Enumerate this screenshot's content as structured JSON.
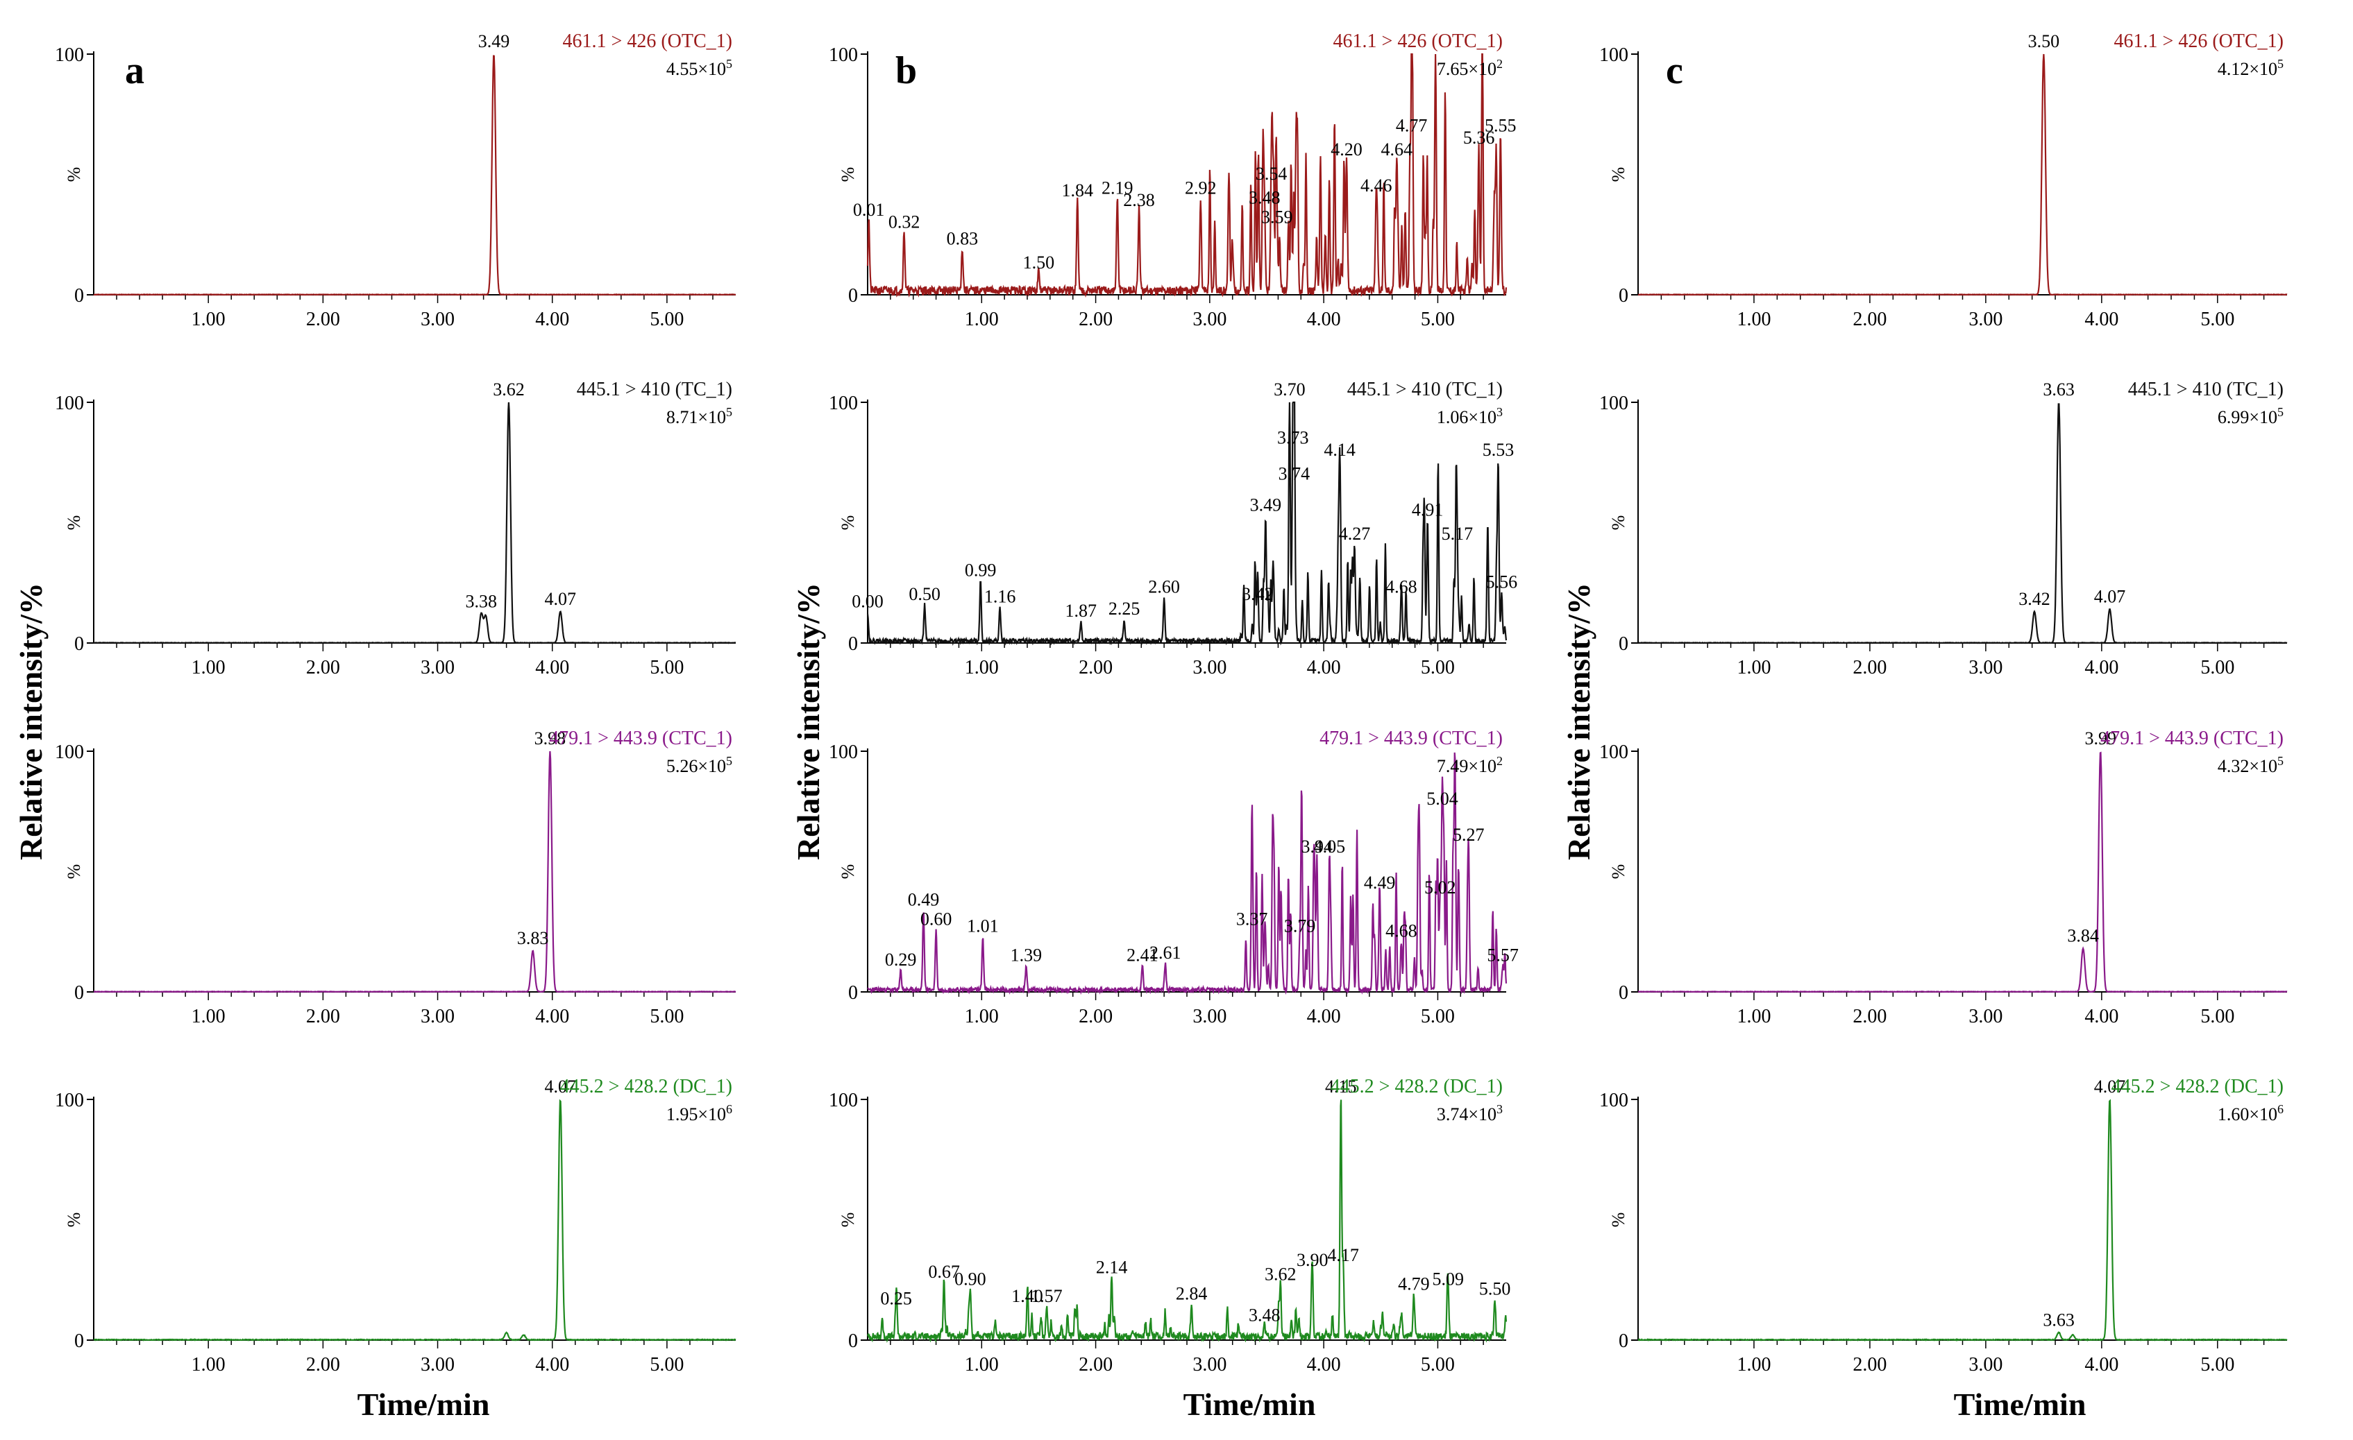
{
  "figure": {
    "y_label": "Relative intensity/%",
    "x_label": "Time/min"
  },
  "chart_data": [
    {
      "panel": "a",
      "row": 0,
      "type": "line",
      "title": "461.1 > 426 (OTC_1)",
      "color": "#9b1b1b",
      "scale": "4.55×10",
      "scale_exp": "5",
      "xticks": [
        "1.00",
        "2.00",
        "3.00",
        "4.00",
        "5.00"
      ],
      "xlim": [
        0,
        5.6
      ],
      "yticks": [
        "0",
        "%",
        "100"
      ],
      "ylim": [
        0,
        100
      ],
      "peaks": [
        {
          "x": 3.49,
          "h": 100,
          "label": "3.49"
        }
      ],
      "noise": 0.3,
      "seed": 11
    },
    {
      "panel": "a",
      "row": 1,
      "type": "line",
      "title": "445.1 > 410 (TC_1)",
      "color": "#111111",
      "scale": "8.71×10",
      "scale_exp": "5",
      "xticks": [
        "1.00",
        "2.00",
        "3.00",
        "4.00",
        "5.00"
      ],
      "xlim": [
        0,
        5.6
      ],
      "yticks": [
        "0",
        "%",
        "100"
      ],
      "ylim": [
        0,
        100
      ],
      "peaks": [
        {
          "x": 3.38,
          "h": 12,
          "label": "3.38"
        },
        {
          "x": 3.42,
          "h": 11
        },
        {
          "x": 3.62,
          "h": 100,
          "label": "3.62"
        },
        {
          "x": 4.07,
          "h": 13,
          "label": "4.07"
        }
      ],
      "noise": 0.3,
      "seed": 12
    },
    {
      "panel": "a",
      "row": 2,
      "type": "line",
      "title": "479.1 > 443.9 (CTC_1)",
      "color": "#8a1a8a",
      "scale": "5.26×10",
      "scale_exp": "5",
      "xticks": [
        "1.00",
        "2.00",
        "3.00",
        "4.00",
        "5.00"
      ],
      "xlim": [
        0,
        5.6
      ],
      "yticks": [
        "0",
        "%",
        "100"
      ],
      "ylim": [
        0,
        100
      ],
      "peaks": [
        {
          "x": 3.83,
          "h": 17,
          "label": "3.83"
        },
        {
          "x": 3.98,
          "h": 100,
          "label": "3.98"
        }
      ],
      "noise": 0.3,
      "seed": 13
    },
    {
      "panel": "a",
      "row": 3,
      "type": "line",
      "title": "445.2 > 428.2 (DC_1)",
      "color": "#1f8a1f",
      "scale": "1.95×10",
      "scale_exp": "6",
      "xticks": [
        "1.00",
        "2.00",
        "3.00",
        "4.00",
        "5.00"
      ],
      "xlim": [
        0,
        5.6
      ],
      "yticks": [
        "0",
        "%",
        "100"
      ],
      "ylim": [
        0,
        100
      ],
      "peaks": [
        {
          "x": 3.6,
          "h": 3
        },
        {
          "x": 3.75,
          "h": 2
        },
        {
          "x": 4.07,
          "h": 100,
          "label": "4.07"
        }
      ],
      "noise": 0.5,
      "seed": 14
    },
    {
      "panel": "b",
      "row": 0,
      "type": "line",
      "title": "461.1 > 426 (OTC_1)",
      "color": "#9b1b1b",
      "scale": "7.65×10",
      "scale_exp": "2",
      "xticks": [
        "1.00",
        "2.00",
        "3.00",
        "4.00",
        "5.00"
      ],
      "xlim": [
        0,
        5.6
      ],
      "yticks": [
        "0",
        "%",
        "100"
      ],
      "ylim": [
        0,
        100
      ],
      "peaks": [
        {
          "x": 0.01,
          "h": 30,
          "label": "0.01"
        },
        {
          "x": 0.32,
          "h": 25,
          "label": "0.32"
        },
        {
          "x": 0.83,
          "h": 18,
          "label": "0.83"
        },
        {
          "x": 1.5,
          "h": 8,
          "label": "1.50"
        },
        {
          "x": 1.84,
          "h": 38,
          "label": "1.84"
        },
        {
          "x": 2.19,
          "h": 39,
          "label": "2.19"
        },
        {
          "x": 2.38,
          "h": 34,
          "label": "2.38"
        },
        {
          "x": 2.92,
          "h": 39,
          "label": "2.92"
        },
        {
          "x": 3.48,
          "h": 35,
          "label": "3.48"
        },
        {
          "x": 3.54,
          "h": 45,
          "label": "3.54"
        },
        {
          "x": 3.59,
          "h": 27,
          "label": "3.59"
        },
        {
          "x": 4.2,
          "h": 55,
          "label": "4.20"
        },
        {
          "x": 4.46,
          "h": 40,
          "label": "4.46"
        },
        {
          "x": 4.64,
          "h": 55,
          "label": "4.64"
        },
        {
          "x": 4.77,
          "h": 65,
          "label": "4.77"
        },
        {
          "x": 4.98,
          "h": 100
        },
        {
          "x": 5.36,
          "h": 60,
          "label": "5.36"
        },
        {
          "x": 5.55,
          "h": 65,
          "label": "5.55"
        }
      ],
      "noise": 6,
      "spikes": {
        "start": 3.0,
        "end": 5.6,
        "count": 70,
        "max": 60
      },
      "seed": 21
    },
    {
      "panel": "b",
      "row": 1,
      "type": "line",
      "title": "445.1 > 410 (TC_1)",
      "color": "#111111",
      "scale": "1.06×10",
      "scale_exp": "3",
      "xticks": [
        "1.00",
        "2.00",
        "3.00",
        "4.00",
        "5.00"
      ],
      "xlim": [
        0,
        5.6
      ],
      "yticks": [
        "0",
        "%",
        "100"
      ],
      "ylim": [
        0,
        100
      ],
      "peaks": [
        {
          "x": 0.0,
          "h": 12,
          "label": "0.00"
        },
        {
          "x": 0.5,
          "h": 15,
          "label": "0.50"
        },
        {
          "x": 0.99,
          "h": 25,
          "label": "0.99"
        },
        {
          "x": 1.16,
          "h": 14,
          "label": "1.16"
        },
        {
          "x": 1.87,
          "h": 8,
          "label": "1.87"
        },
        {
          "x": 2.25,
          "h": 9,
          "label": "2.25"
        },
        {
          "x": 2.6,
          "h": 18,
          "label": "2.60"
        },
        {
          "x": 3.42,
          "h": 15,
          "label": "3.42"
        },
        {
          "x": 3.49,
          "h": 52,
          "label": "3.49"
        },
        {
          "x": 3.7,
          "h": 100,
          "label": "3.70"
        },
        {
          "x": 3.73,
          "h": 80,
          "label": "3.73"
        },
        {
          "x": 3.74,
          "h": 65,
          "label": "3.74"
        },
        {
          "x": 4.14,
          "h": 75,
          "label": "4.14"
        },
        {
          "x": 4.27,
          "h": 40,
          "label": "4.27"
        },
        {
          "x": 4.68,
          "h": 18,
          "label": "4.68"
        },
        {
          "x": 4.91,
          "h": 50,
          "label": "4.91"
        },
        {
          "x": 5.17,
          "h": 40,
          "label": "5.17"
        },
        {
          "x": 5.53,
          "h": 75,
          "label": "5.53"
        },
        {
          "x": 5.56,
          "h": 20,
          "label": "5.56"
        }
      ],
      "noise": 3,
      "spikes": {
        "start": 3.2,
        "end": 5.6,
        "count": 60,
        "max": 35
      },
      "seed": 22
    },
    {
      "panel": "b",
      "row": 2,
      "type": "line",
      "title": "479.1 > 443.9 (CTC_1)",
      "color": "#8a1a8a",
      "scale": "7.49×10",
      "scale_exp": "2",
      "xticks": [
        "1.00",
        "2.00",
        "3.00",
        "4.00",
        "5.00"
      ],
      "xlim": [
        0,
        5.6
      ],
      "yticks": [
        "0",
        "%",
        "100"
      ],
      "ylim": [
        0,
        100
      ],
      "peaks": [
        {
          "x": 0.29,
          "h": 8,
          "label": "0.29"
        },
        {
          "x": 0.49,
          "h": 33,
          "label": "0.49"
        },
        {
          "x": 0.6,
          "h": 25,
          "label": "0.60"
        },
        {
          "x": 1.01,
          "h": 22,
          "label": "1.01"
        },
        {
          "x": 1.39,
          "h": 10,
          "label": "1.39"
        },
        {
          "x": 2.41,
          "h": 10,
          "label": "2.41"
        },
        {
          "x": 2.61,
          "h": 11,
          "label": "2.61"
        },
        {
          "x": 3.37,
          "h": 25,
          "label": "3.37"
        },
        {
          "x": 3.79,
          "h": 22,
          "label": "3.79"
        },
        {
          "x": 3.94,
          "h": 55,
          "label": "3.94"
        },
        {
          "x": 4.05,
          "h": 55,
          "label": "4.05"
        },
        {
          "x": 4.49,
          "h": 40,
          "label": "4.49"
        },
        {
          "x": 4.68,
          "h": 20,
          "label": "4.68"
        },
        {
          "x": 5.02,
          "h": 38,
          "label": "5.02"
        },
        {
          "x": 5.04,
          "h": 75,
          "label": "5.04"
        },
        {
          "x": 5.15,
          "h": 100
        },
        {
          "x": 5.27,
          "h": 60,
          "label": "5.27"
        },
        {
          "x": 5.57,
          "h": 10,
          "label": "5.57"
        }
      ],
      "noise": 3,
      "spikes": {
        "start": 3.3,
        "end": 5.6,
        "count": 65,
        "max": 55
      },
      "seed": 23
    },
    {
      "panel": "b",
      "row": 3,
      "type": "line",
      "title": "445.2 > 428.2 (DC_1)",
      "color": "#1f8a1f",
      "scale": "3.74×10",
      "scale_exp": "3",
      "xticks": [
        "1.00",
        "2.00",
        "3.00",
        "4.00",
        "5.00"
      ],
      "xlim": [
        0,
        5.6
      ],
      "yticks": [
        "0",
        "%",
        "100"
      ],
      "ylim": [
        0,
        100
      ],
      "peaks": [
        {
          "x": 0.25,
          "h": 12,
          "label": "0.25"
        },
        {
          "x": 0.67,
          "h": 23,
          "label": "0.67"
        },
        {
          "x": 0.9,
          "h": 20,
          "label": "0.90"
        },
        {
          "x": 1.4,
          "h": 13,
          "label": "1.40"
        },
        {
          "x": 1.57,
          "h": 13,
          "label": "1.57"
        },
        {
          "x": 2.14,
          "h": 25,
          "label": "2.14"
        },
        {
          "x": 2.84,
          "h": 14,
          "label": "2.84"
        },
        {
          "x": 3.48,
          "h": 5,
          "label": "3.48"
        },
        {
          "x": 3.62,
          "h": 22,
          "label": "3.62"
        },
        {
          "x": 3.9,
          "h": 28,
          "label": "3.90"
        },
        {
          "x": 4.15,
          "h": 100,
          "label": "4.15"
        },
        {
          "x": 4.17,
          "h": 30,
          "label": "4.17"
        },
        {
          "x": 4.79,
          "h": 18,
          "label": "4.79"
        },
        {
          "x": 5.09,
          "h": 20,
          "label": "5.09"
        },
        {
          "x": 5.5,
          "h": 16,
          "label": "5.50"
        }
      ],
      "noise": 5,
      "spikes": {
        "start": 0.1,
        "end": 5.6,
        "count": 55,
        "max": 12
      },
      "seed": 24
    },
    {
      "panel": "c",
      "row": 0,
      "type": "line",
      "title": "461.1 > 426 (OTC_1)",
      "color": "#9b1b1b",
      "scale": "4.12×10",
      "scale_exp": "5",
      "xticks": [
        "1.00",
        "2.00",
        "3.00",
        "4.00",
        "5.00"
      ],
      "xlim": [
        0,
        5.6
      ],
      "yticks": [
        "0",
        "%",
        "100"
      ],
      "ylim": [
        0,
        100
      ],
      "peaks": [
        {
          "x": 3.5,
          "h": 100,
          "label": "3.50"
        }
      ],
      "noise": 0.3,
      "seed": 31
    },
    {
      "panel": "c",
      "row": 1,
      "type": "line",
      "title": "445.1 > 410 (TC_1)",
      "color": "#111111",
      "scale": "6.99×10",
      "scale_exp": "5",
      "xticks": [
        "1.00",
        "2.00",
        "3.00",
        "4.00",
        "5.00"
      ],
      "xlim": [
        0,
        5.6
      ],
      "yticks": [
        "0",
        "%",
        "100"
      ],
      "ylim": [
        0,
        100
      ],
      "peaks": [
        {
          "x": 3.42,
          "h": 13,
          "label": "3.42"
        },
        {
          "x": 3.63,
          "h": 100,
          "label": "3.63"
        },
        {
          "x": 4.07,
          "h": 14,
          "label": "4.07"
        }
      ],
      "noise": 0.3,
      "seed": 32
    },
    {
      "panel": "c",
      "row": 2,
      "type": "line",
      "title": "479.1 > 443.9 (CTC_1)",
      "color": "#8a1a8a",
      "scale": "4.32×10",
      "scale_exp": "5",
      "xticks": [
        "1.00",
        "2.00",
        "3.00",
        "4.00",
        "5.00"
      ],
      "xlim": [
        0,
        5.6
      ],
      "yticks": [
        "0",
        "%",
        "100"
      ],
      "ylim": [
        0,
        100
      ],
      "peaks": [
        {
          "x": 3.84,
          "h": 18,
          "label": "3.84"
        },
        {
          "x": 3.99,
          "h": 100,
          "label": "3.99"
        }
      ],
      "noise": 0.3,
      "seed": 33
    },
    {
      "panel": "c",
      "row": 3,
      "type": "line",
      "title": "445.2 > 428.2 (DC_1)",
      "color": "#1f8a1f",
      "scale": "1.60×10",
      "scale_exp": "6",
      "xticks": [
        "1.00",
        "2.00",
        "3.00",
        "4.00",
        "5.00"
      ],
      "xlim": [
        0,
        5.6
      ],
      "yticks": [
        "0",
        "%",
        "100"
      ],
      "ylim": [
        0,
        100
      ],
      "peaks": [
        {
          "x": 3.63,
          "h": 3,
          "label": "3.63"
        },
        {
          "x": 3.75,
          "h": 2
        },
        {
          "x": 4.07,
          "h": 100,
          "label": "4.07"
        }
      ],
      "noise": 0.5,
      "seed": 34
    }
  ]
}
